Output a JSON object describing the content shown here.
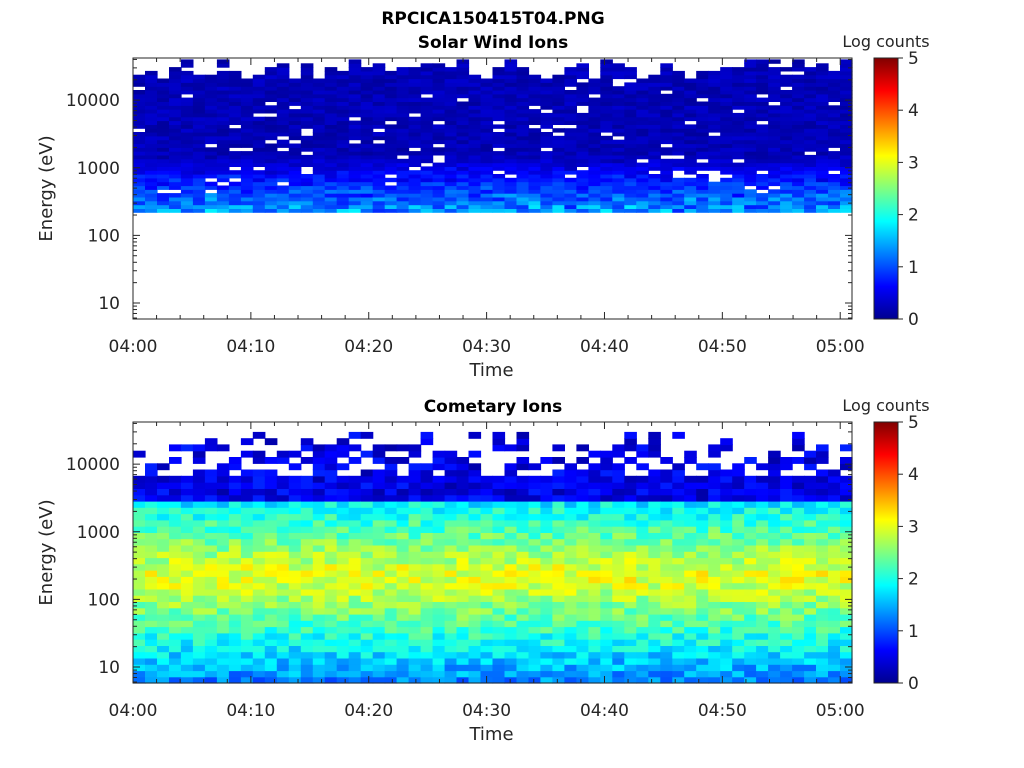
{
  "figure": {
    "title": "RPCICA150415T04.PNG"
  },
  "chart_data": [
    {
      "type": "heatmap",
      "title": "Solar Wind Ions",
      "xlabel": "Time",
      "ylabel": "Energy (eV)",
      "x_ticks": [
        "04:00",
        "04:10",
        "04:20",
        "04:30",
        "04:40",
        "04:50",
        "05:00"
      ],
      "xlim": [
        "04:00",
        "05:01"
      ],
      "y_scale": "log",
      "y_ticks": [
        10,
        100,
        1000,
        10000
      ],
      "y_tick_labels": [
        "10",
        "100",
        "1000",
        "10000"
      ],
      "ylim": [
        5.8,
        42000
      ],
      "colorbar": {
        "label": "Log counts",
        "ticks": [
          0,
          1,
          2,
          3,
          4,
          5
        ],
        "tick_labels": [
          "0",
          "1",
          "2",
          "3",
          "4",
          "5"
        ],
        "range": [
          0,
          5
        ],
        "colormap": "jet"
      },
      "data_coverage": {
        "energy_min_eV": 220,
        "energy_max_eV": 40000,
        "dominant_log_counts": 0.2,
        "max_log_counts": 1.8,
        "note": "Mostly background (near 0) with sparse blue pixels at low energies"
      }
    },
    {
      "type": "heatmap",
      "title": "Cometary Ions",
      "xlabel": "Time",
      "ylabel": "Energy (eV)",
      "x_ticks": [
        "04:00",
        "04:10",
        "04:20",
        "04:30",
        "04:40",
        "04:50",
        "05:00"
      ],
      "xlim": [
        "04:00",
        "05:01"
      ],
      "y_scale": "log",
      "y_ticks": [
        10,
        100,
        1000,
        10000
      ],
      "y_tick_labels": [
        "10",
        "100",
        "1000",
        "10000"
      ],
      "ylim": [
        5.8,
        42000
      ],
      "colorbar": {
        "label": "Log counts",
        "ticks": [
          0,
          1,
          2,
          3,
          4,
          5
        ],
        "tick_labels": [
          "0",
          "1",
          "2",
          "3",
          "4",
          "5"
        ],
        "range": [
          0,
          5
        ],
        "colormap": "jet"
      },
      "data_coverage": {
        "energy_min_eV": 5.8,
        "energy_max_eV": 30000,
        "peak_energy_eV": 200,
        "peak_log_counts": 3.2,
        "note": "Broad peak 100–500 eV, counts falling to ~0.5 above 2000 eV"
      }
    }
  ]
}
